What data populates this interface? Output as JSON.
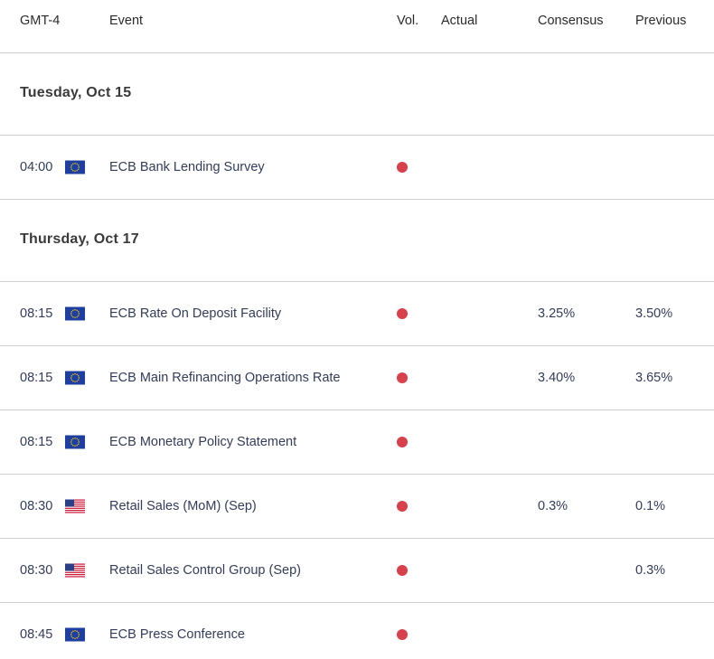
{
  "header": {
    "columns": [
      "GMT-4",
      "Event",
      "Vol.",
      "Actual",
      "Consensus",
      "Previous"
    ]
  },
  "days": [
    {
      "date": "Tuesday, Oct 15",
      "events": [
        {
          "time": "04:00",
          "flag": "EU",
          "event": "ECB Bank Lending Survey"
        }
      ]
    },
    {
      "date": "Thursday, Oct 17",
      "events": [
        {
          "time": "08:15",
          "flag": "EU",
          "event": "ECB Rate On Deposit Facility",
          "consensus": "3.25%",
          "previous": "3.50%"
        },
        {
          "time": "08:15",
          "flag": "EU",
          "event": "ECB Main Refinancing Operations Rate",
          "consensus": "3.40%",
          "previous": "3.65%"
        },
        {
          "time": "08:15",
          "flag": "EU",
          "event": "ECB Monetary Policy Statement"
        },
        {
          "time": "08:30",
          "flag": "US",
          "event": "Retail Sales (MoM) (Sep)",
          "consensus": "0.3%",
          "previous": "0.1%"
        },
        {
          "time": "08:30",
          "flag": "US",
          "event": "Retail Sales Control Group (Sep)",
          "previous": "0.3%"
        },
        {
          "time": "08:45",
          "flag": "EU",
          "event": "ECB Press Conference"
        }
      ]
    }
  ]
}
